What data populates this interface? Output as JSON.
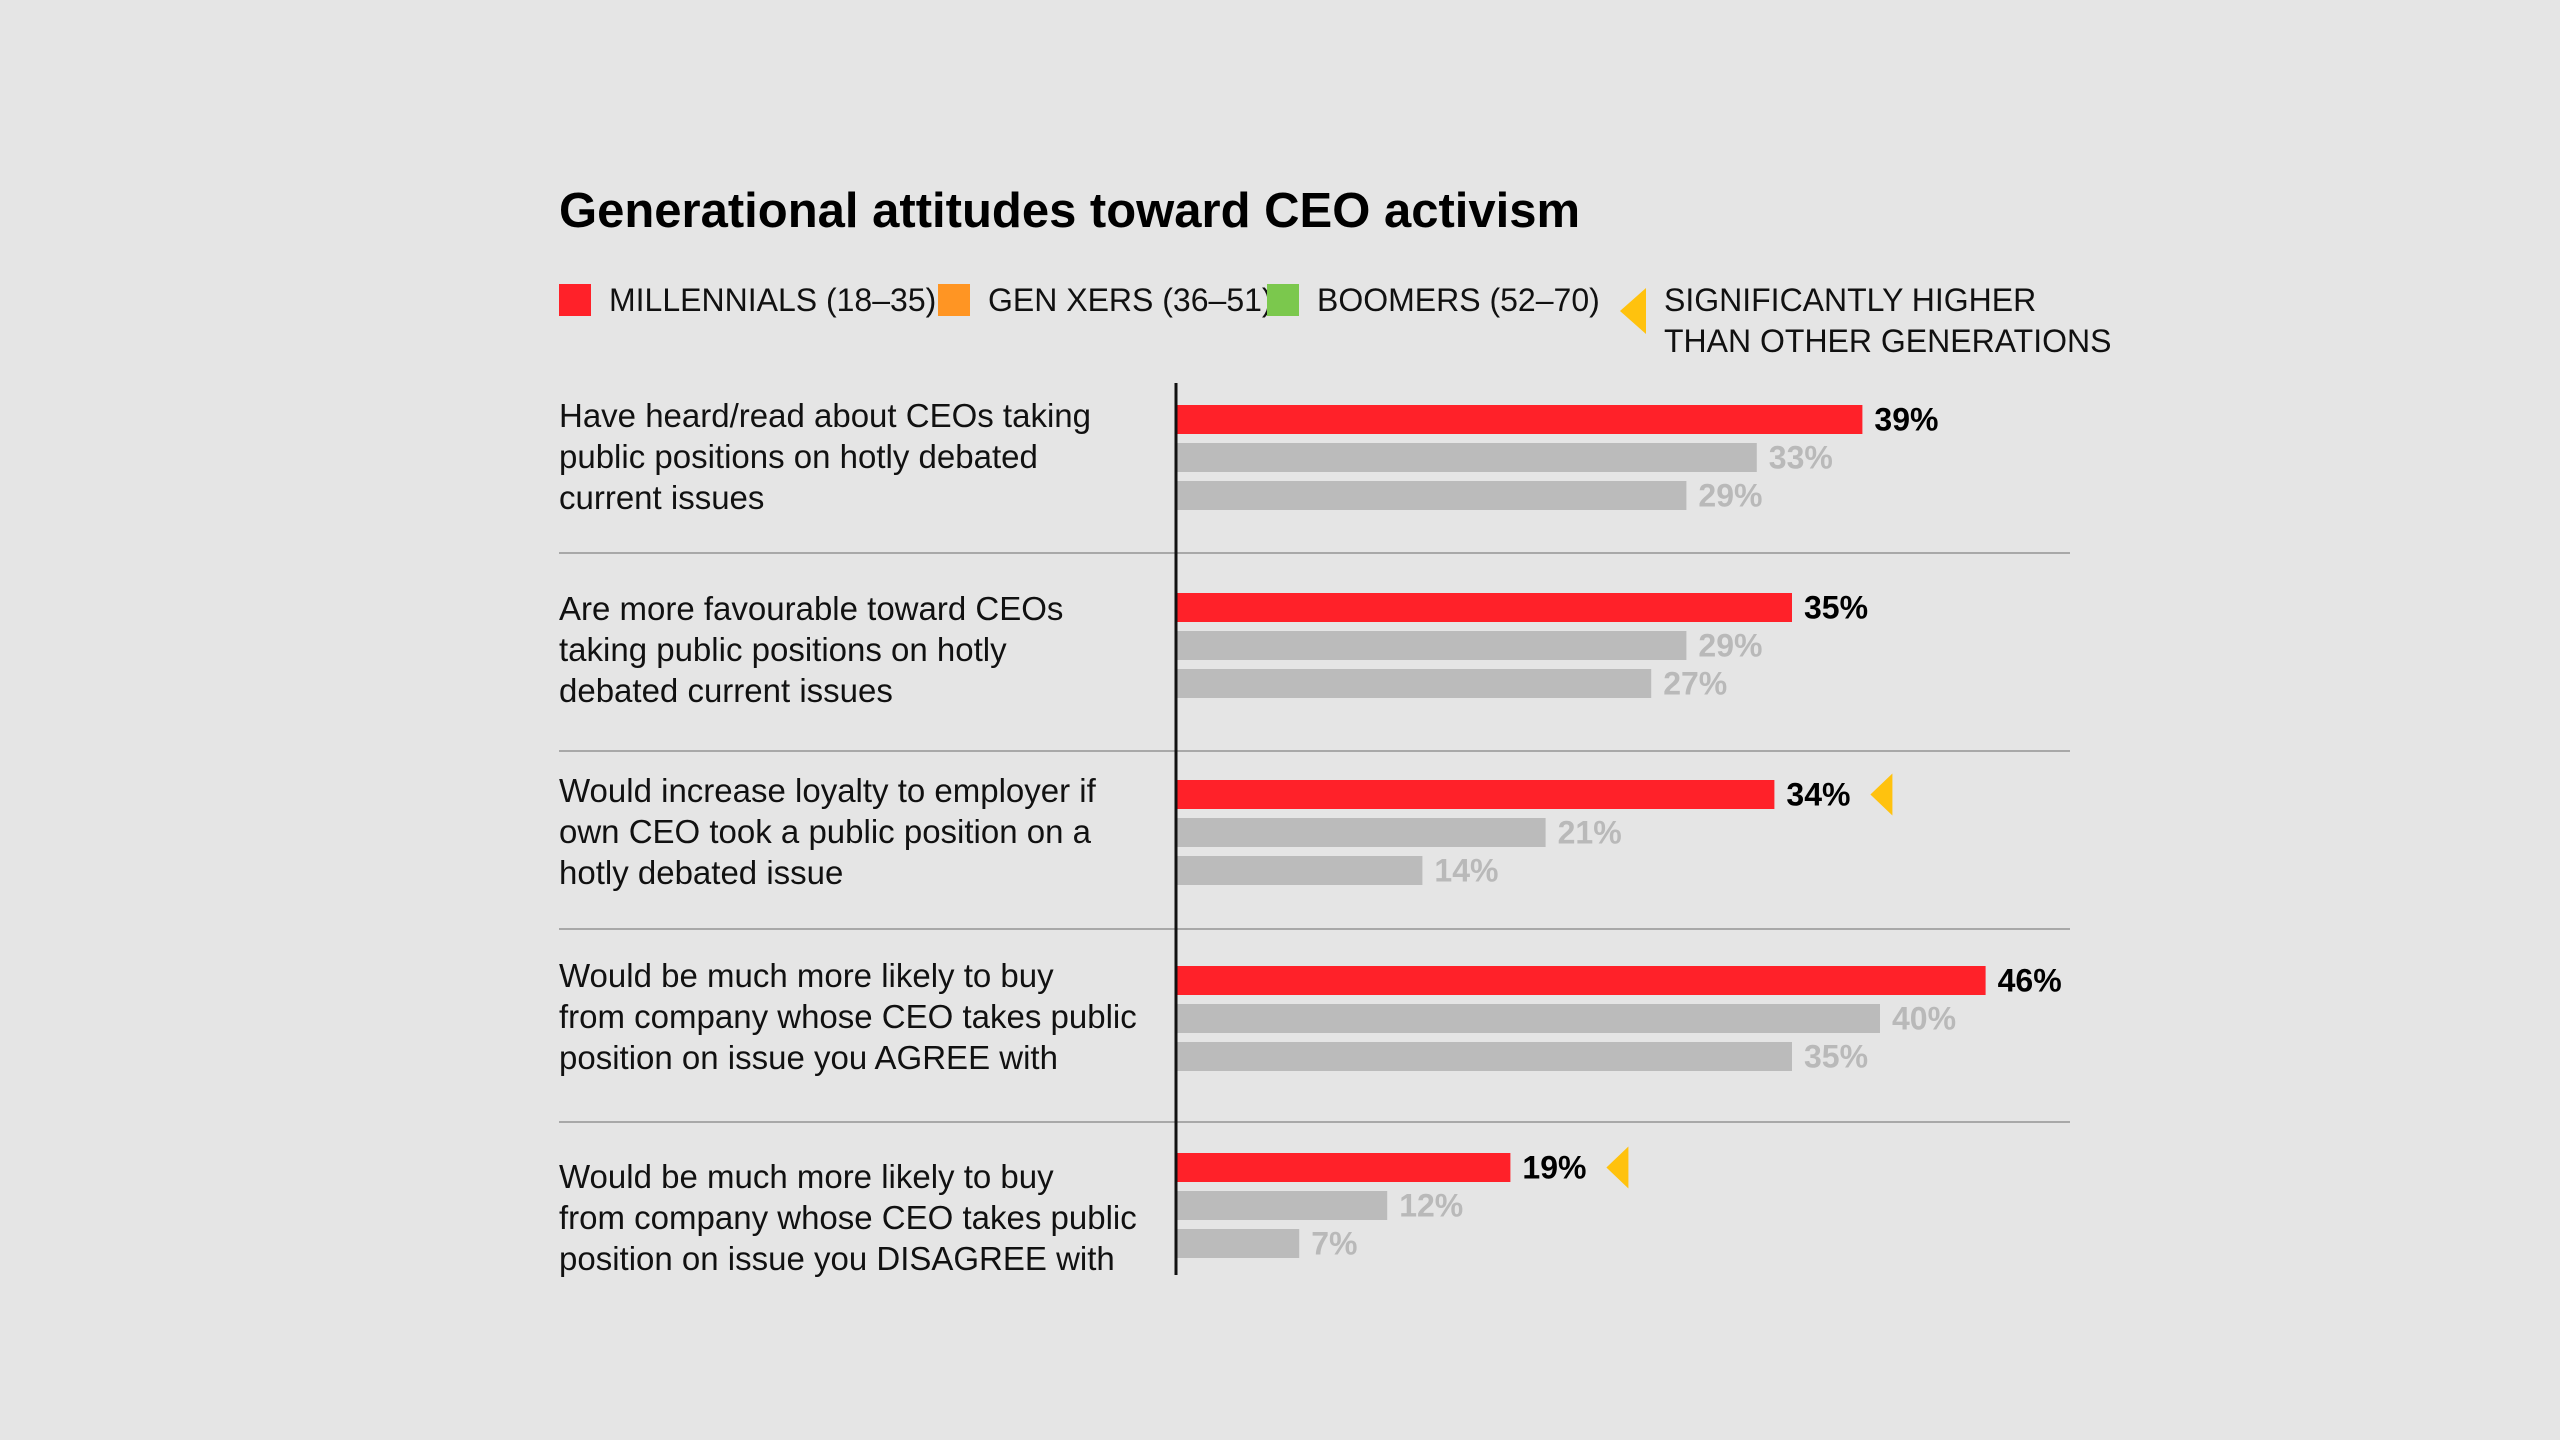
{
  "chart_data": {
    "type": "bar",
    "title": "Generational attitudes toward CEO activism",
    "xlim": [
      0,
      100
    ],
    "legend": [
      {
        "name": "MILLENNIALS (18–35)",
        "color": "#ff2129"
      },
      {
        "name": "GEN XERS (36–51)",
        "color": "#ff9523"
      },
      {
        "name": "BOOMERS (52–70)",
        "color": "#7bc84d"
      }
    ],
    "significance_legend": {
      "lines": [
        "SIGNIFICANTLY HIGHER",
        "THAN OTHER GENERATIONS"
      ],
      "color": "#ffc20e"
    },
    "categories": [
      {
        "lines": [
          "Have heard/read about CEOs taking",
          "public positions on hotly debated",
          "current issues"
        ]
      },
      {
        "lines": [
          "Are more favourable toward CEOs",
          "taking public positions on hotly",
          "debated current issues"
        ]
      },
      {
        "lines": [
          "Would increase loyalty to employer if",
          "own CEO took a public position on a",
          "hotly debated issue"
        ]
      },
      {
        "lines": [
          "Would be much more likely to buy",
          "from company whose CEO takes public",
          "position on issue you AGREE with"
        ]
      },
      {
        "lines": [
          "Would be much more likely to buy",
          "from company whose CEO takes public",
          "position on issue you DISAGREE with"
        ]
      }
    ],
    "series": [
      {
        "name": "MILLENNIALS (18–35)",
        "values": [
          39,
          35,
          34,
          46,
          19
        ],
        "labels": [
          "39%",
          "35%",
          "34%",
          "46%",
          "19%"
        ],
        "color": "#ff2129",
        "label_color": "#000000"
      },
      {
        "name": "GEN XERS (36–51)",
        "values": [
          33,
          29,
          21,
          40,
          12
        ],
        "labels": [
          "33%",
          "29%",
          "21%",
          "40%",
          "12%"
        ],
        "color": "#bbbbbb",
        "label_color": "#b9b9b9"
      },
      {
        "name": "BOOMERS (52–70)",
        "values": [
          29,
          27,
          14,
          35,
          7
        ],
        "labels": [
          "29%",
          "27%",
          "14%",
          "35%",
          "7%"
        ],
        "color": "#bbbbbb",
        "label_color": "#b9b9b9"
      }
    ],
    "significant": [
      false,
      false,
      true,
      false,
      true
    ]
  }
}
